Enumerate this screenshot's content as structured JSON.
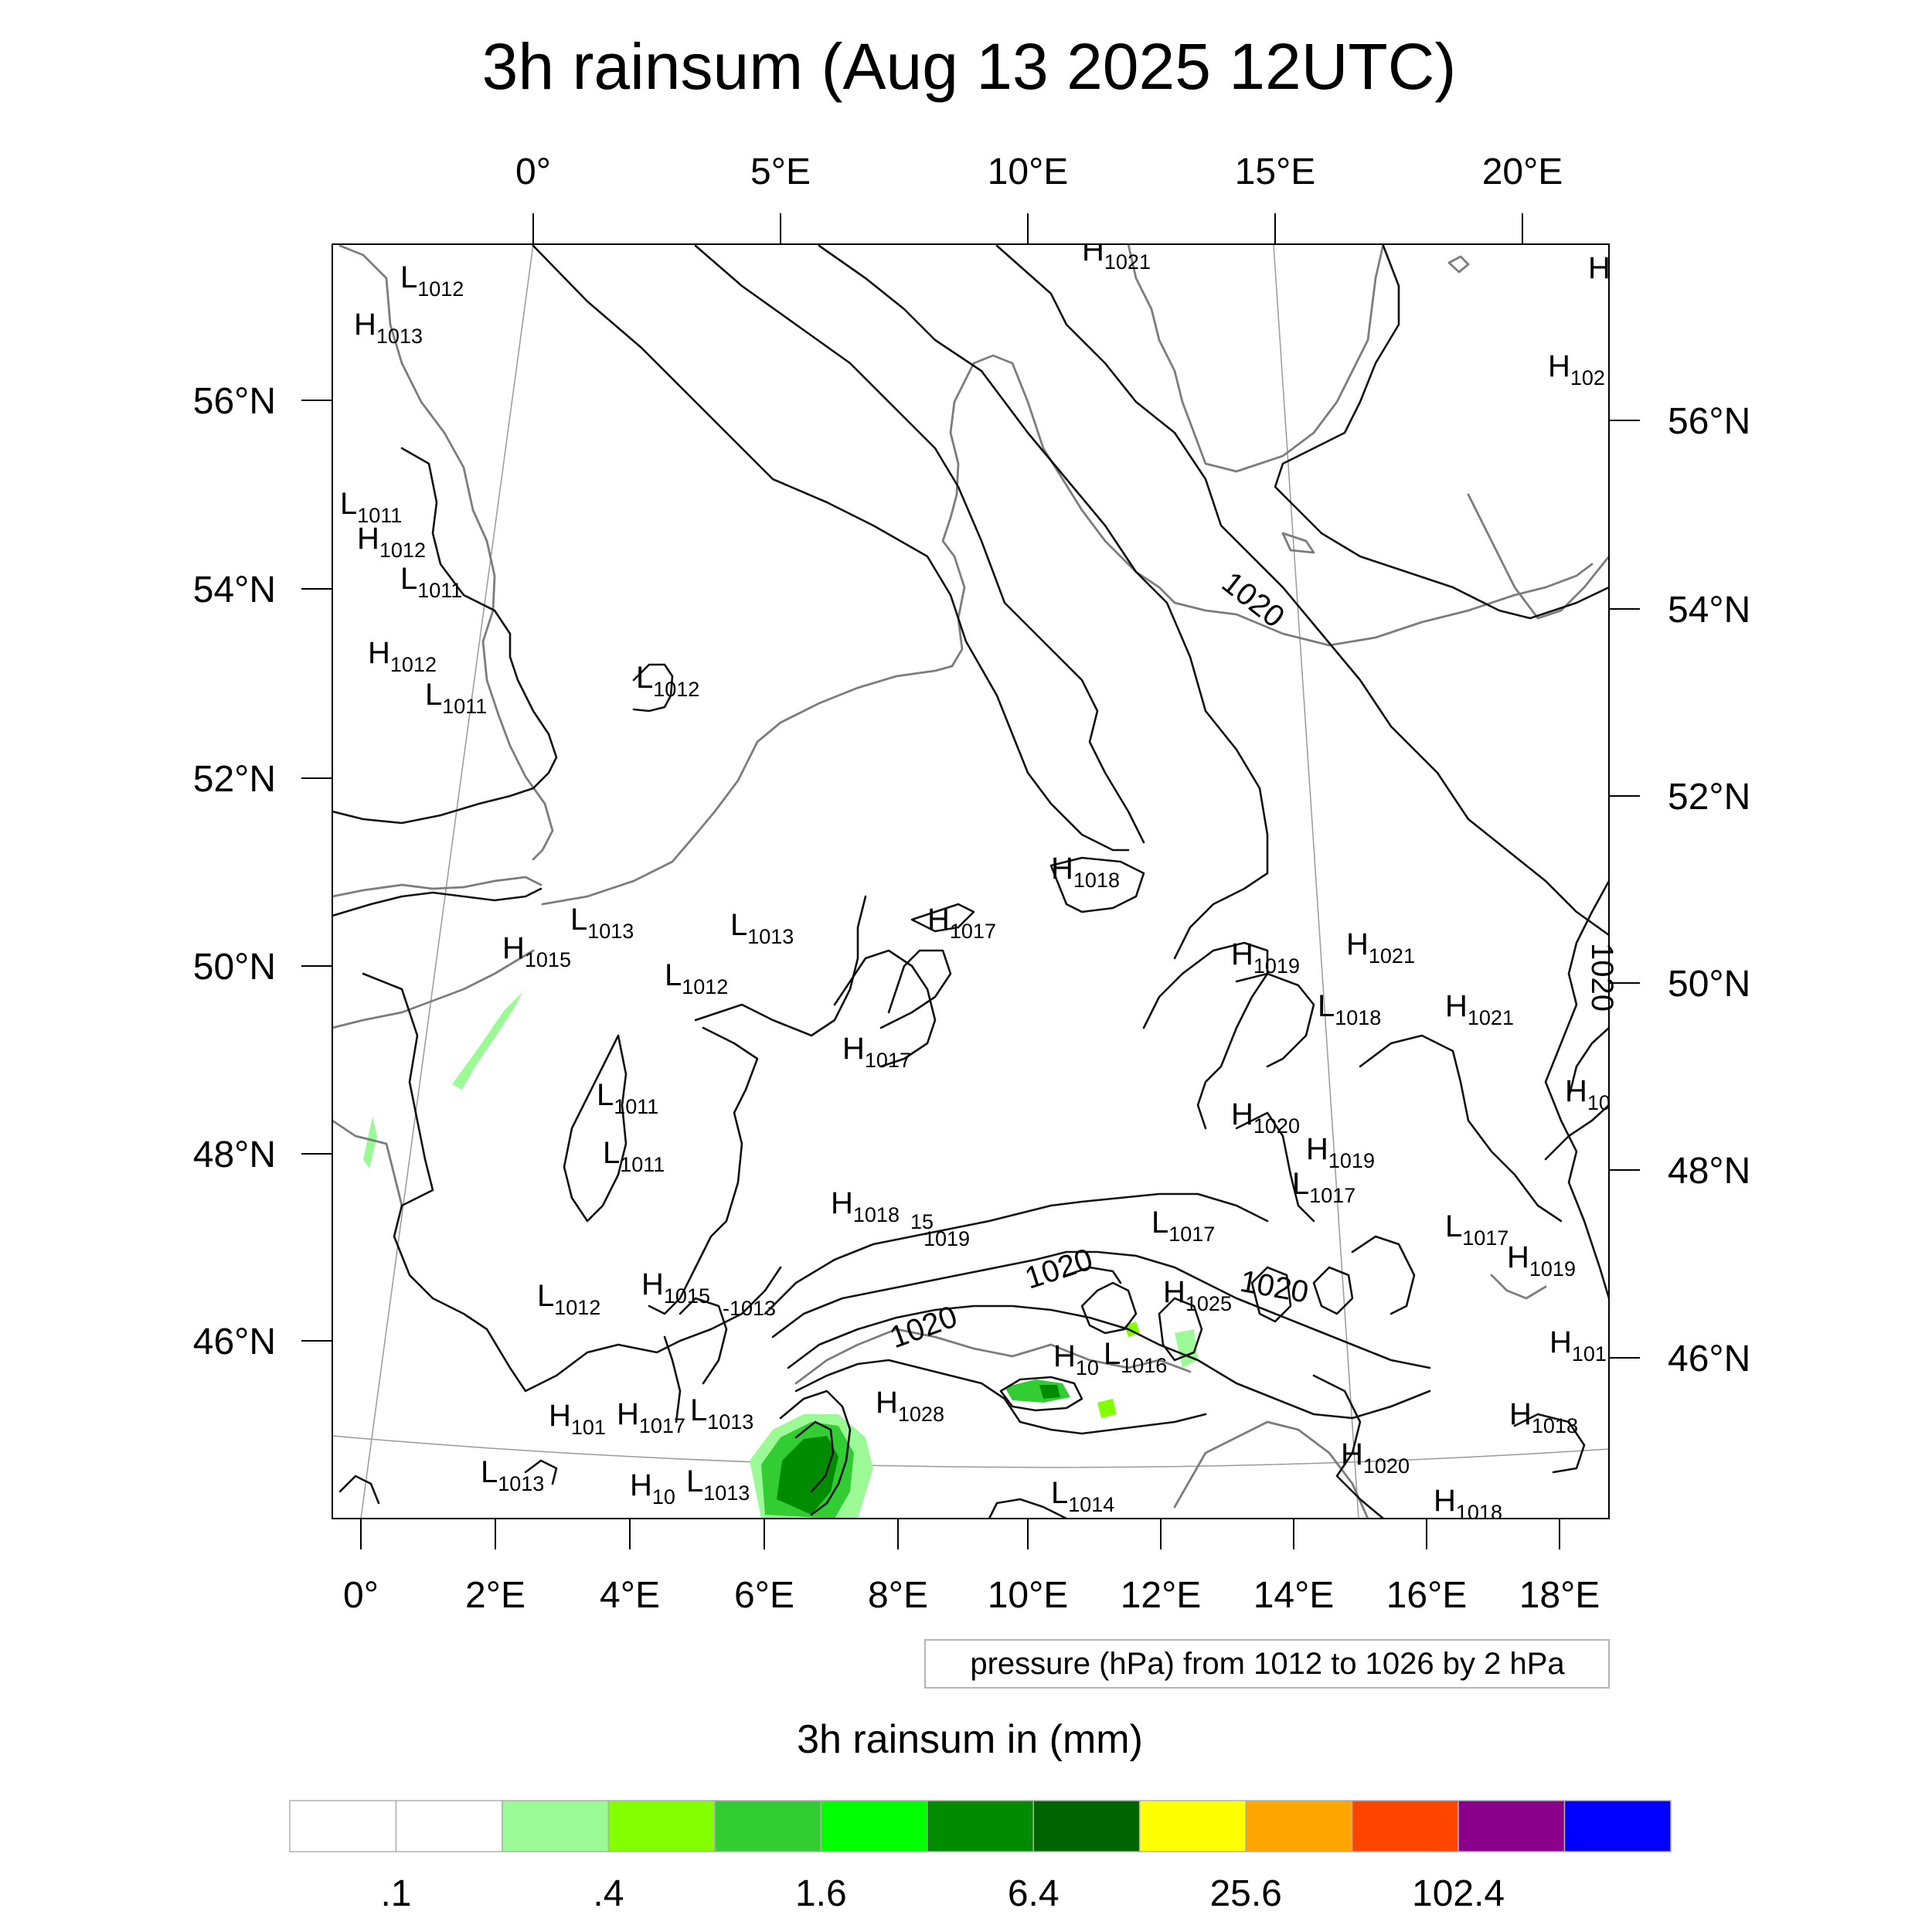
{
  "title": "3h rainsum (Aug 13 2025 12UTC)",
  "map": {
    "top_lon_labels": [
      "0°",
      "5°E",
      "10°E",
      "15°E",
      "20°E"
    ],
    "bottom_lon_labels": [
      "0°",
      "2°E",
      "4°E",
      "6°E",
      "8°E",
      "10°E",
      "12°E",
      "14°E",
      "16°E",
      "18°E"
    ],
    "left_lat_labels": [
      "56°N",
      "54°N",
      "52°N",
      "50°N",
      "48°N",
      "46°N"
    ],
    "right_lat_labels": [
      "56°N",
      "54°N",
      "52°N",
      "50°N",
      "48°N",
      "46°N"
    ],
    "pressure_centers": [
      {
        "kind": "L",
        "value": "1012"
      },
      {
        "kind": "H",
        "value": "1013"
      },
      {
        "kind": "L",
        "value": "1011"
      },
      {
        "kind": "H",
        "value": "1012"
      },
      {
        "kind": "L",
        "value": "1011"
      },
      {
        "kind": "H",
        "value": "1012"
      },
      {
        "kind": "L",
        "value": "1011"
      },
      {
        "kind": "L",
        "value": "1012"
      },
      {
        "kind": "H",
        "value": "1021"
      },
      {
        "kind": "H",
        "value": "102"
      },
      {
        "kind": "H",
        "value": ""
      },
      {
        "kind": "H",
        "value": "1018"
      },
      {
        "kind": "H",
        "value": "1017"
      },
      {
        "kind": "L",
        "value": "1013"
      },
      {
        "kind": "L",
        "value": "1013"
      },
      {
        "kind": "H",
        "value": "1015"
      },
      {
        "kind": "L",
        "value": "1012"
      },
      {
        "kind": "H",
        "value": "1019"
      },
      {
        "kind": "H",
        "value": "1021"
      },
      {
        "kind": "L",
        "value": "1018"
      },
      {
        "kind": "H",
        "value": "1021"
      },
      {
        "kind": "H",
        "value": "1017"
      },
      {
        "kind": "L",
        "value": "1011"
      },
      {
        "kind": "L",
        "value": "1011"
      },
      {
        "kind": "H",
        "value": "1020"
      },
      {
        "kind": "H",
        "value": "1019"
      },
      {
        "kind": "L",
        "value": "1017"
      },
      {
        "kind": "H",
        "value": "10"
      },
      {
        "kind": "H",
        "value": "1018"
      },
      {
        "kind": "L",
        "value": "1017"
      },
      {
        "kind": "L",
        "value": "1017"
      },
      {
        "kind": "H",
        "value": "1019"
      },
      {
        "kind": "L",
        "value": "1012"
      },
      {
        "kind": "H",
        "value": "1015"
      },
      {
        "kind": "H",
        "value": "1025"
      },
      {
        "kind": "H",
        "value": "10"
      },
      {
        "kind": "L",
        "value": "1016"
      },
      {
        "kind": "H",
        "value": "101"
      },
      {
        "kind": "H",
        "value": "1028"
      },
      {
        "kind": "H",
        "value": "101"
      },
      {
        "kind": "H",
        "value": "1017"
      },
      {
        "kind": "L",
        "value": "1013"
      },
      {
        "kind": "H",
        "value": "1018"
      },
      {
        "kind": "L",
        "value": "1013"
      },
      {
        "kind": "H",
        "value": "10"
      },
      {
        "kind": "L",
        "value": "1013"
      },
      {
        "kind": "L",
        "value": "1014"
      },
      {
        "kind": "H",
        "value": "1020"
      },
      {
        "kind": "H",
        "value": "1018"
      }
    ],
    "contour_labels": [
      "1020",
      "1020",
      "1020",
      "1020",
      "1020",
      "15",
      "1019",
      "-1013"
    ]
  },
  "legend": {
    "pressure_note": "pressure (hPa) from 1012 to 1026 by 2 hPa",
    "colorbar_title": "3h rainsum in (mm)",
    "colorbar_colors": [
      "#ffffff",
      "#ffffff",
      "#9bfa96",
      "#82ff00",
      "#32cd32",
      "#00ff00",
      "#008b00",
      "#006400",
      "#ffff00",
      "#ffa500",
      "#ff4500",
      "#8b008b",
      "#0000ff"
    ],
    "colorbar_labels": [
      ".1",
      ".4",
      "1.6",
      "6.4",
      "25.6",
      "102.4"
    ]
  },
  "colors": {
    "isobar": "#111111",
    "coastline": "#7d7d7d",
    "graticule": "#9a9a9a",
    "precip_light": "#9bfa96",
    "precip_green": "#32cd32",
    "precip_dark": "#008b00"
  }
}
